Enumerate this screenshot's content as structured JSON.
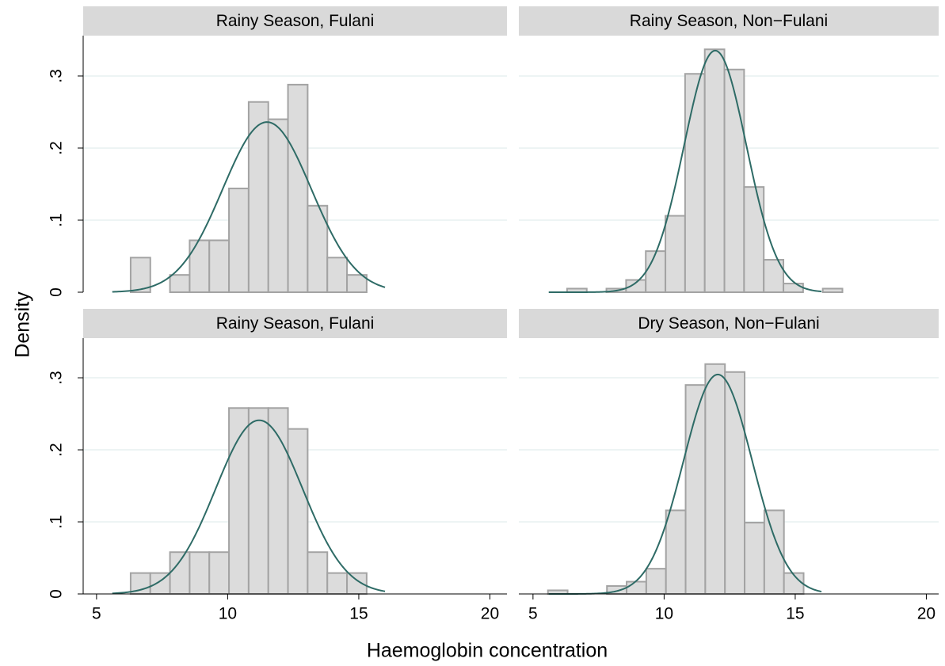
{
  "chart_data": [
    {
      "type": "histogram",
      "title": "Rainy Season, Fulani",
      "bins": [
        6.3,
        7.05,
        7.8,
        8.55,
        9.3,
        10.05,
        10.8,
        11.55,
        12.3,
        13.05,
        13.8,
        14.55,
        15.3
      ],
      "values": [
        0.048,
        0,
        0.024,
        0.072,
        0.072,
        0.144,
        0.264,
        0.24,
        0.288,
        0.12,
        0.048,
        0.024
      ],
      "curve": {
        "mean": 11.5,
        "sd": 1.69,
        "from": 5.6,
        "to": 16
      },
      "xlim": [
        4.49,
        20.65
      ],
      "ylim": [
        0,
        0.356
      ],
      "yticks": [
        {
          "value": 0,
          "label": "0"
        },
        {
          "value": 0.1,
          "label": ".1"
        },
        {
          "value": 0.2,
          "label": ".2"
        },
        {
          "value": 0.3,
          "label": ".3"
        }
      ],
      "grid": true,
      "y_axis": true,
      "x_axis": false
    },
    {
      "type": "histogram",
      "title": "Rainy Season, Non−Fulani",
      "bins": [
        6.3,
        7.05,
        7.8,
        8.55,
        9.3,
        10.05,
        10.8,
        11.55,
        12.3,
        13.05,
        13.8,
        14.55,
        15.3,
        16.05,
        16.8
      ],
      "values": [
        0.005,
        0,
        0.005,
        0.017,
        0.057,
        0.106,
        0.303,
        0.337,
        0.309,
        0.146,
        0.045,
        0.012,
        0,
        0.005
      ],
      "curve": {
        "mean": 11.95,
        "sd": 1.19,
        "from": 5.6,
        "to": 16
      },
      "xlim": [
        4.46,
        20.47
      ],
      "ylim": [
        0,
        0.356
      ],
      "yticks": [
        0,
        0.1,
        0.2,
        0.3
      ],
      "grid": true,
      "y_axis": false,
      "x_axis": false
    },
    {
      "type": "histogram",
      "title": "Rainy Season, Fulani",
      "bins": [
        6.3,
        7.05,
        7.8,
        8.55,
        9.3,
        10.05,
        10.8,
        11.55,
        12.3,
        13.05,
        13.8,
        14.55,
        15.3
      ],
      "values": [
        0.029,
        0.029,
        0.058,
        0.058,
        0.058,
        0.258,
        0.258,
        0.258,
        0.229,
        0.058,
        0.029,
        0.029
      ],
      "curve": {
        "mean": 11.2,
        "sd": 1.655,
        "from": 5.6,
        "to": 16
      },
      "xlim": [
        4.49,
        20.65
      ],
      "ylim": [
        0,
        0.355
      ],
      "xticks": [
        5,
        10,
        15,
        20
      ],
      "yticks": [
        {
          "value": 0,
          "label": "0"
        },
        {
          "value": 0.1,
          "label": ".1"
        },
        {
          "value": 0.2,
          "label": ".2"
        },
        {
          "value": 0.3,
          "label": ".3"
        }
      ],
      "grid": true,
      "y_axis": true,
      "x_axis": true
    },
    {
      "type": "histogram",
      "title": "Dry Season, Non−Fulani",
      "bins": [
        5.57,
        6.32,
        7.07,
        7.82,
        8.57,
        9.32,
        10.07,
        10.82,
        11.57,
        12.32,
        13.07,
        13.82,
        14.57,
        15.32
      ],
      "values": [
        0.005,
        0,
        0,
        0.011,
        0.017,
        0.035,
        0.116,
        0.29,
        0.319,
        0.308,
        0.099,
        0.116,
        0.029
      ],
      "curve": {
        "mean": 12.05,
        "sd": 1.31,
        "from": 5.6,
        "to": 16
      },
      "xlim": [
        4.46,
        20.47
      ],
      "ylim": [
        0,
        0.355
      ],
      "xticks": [
        5,
        10,
        15,
        20
      ],
      "yticks": [
        0,
        0.1,
        0.2,
        0.3
      ],
      "grid": true,
      "y_axis": false,
      "x_axis": true
    }
  ],
  "xlabel": "Haemoglobin concentration",
  "ylabel": "Density",
  "bar_color": "#dcdcdc",
  "bar_edge": "#a3a3a3",
  "curve_color": "#2e6b66",
  "header_color": "#d9d9d9",
  "grid_color": "#e7f0f1"
}
